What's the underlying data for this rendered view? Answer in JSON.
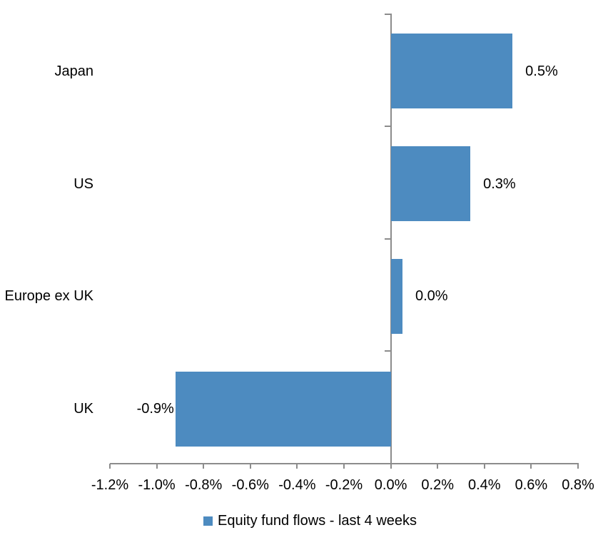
{
  "chart_data": {
    "type": "bar",
    "orientation": "horizontal",
    "title": "",
    "xlabel": "",
    "ylabel": "",
    "categories": [
      "Japan",
      "US",
      "Europe ex UK",
      "UK"
    ],
    "series": [
      {
        "name": "Equity fund flows - last 4 weeks",
        "values": [
          0.5,
          0.3,
          0.0,
          -0.9
        ]
      }
    ],
    "data_labels": [
      "0.5%",
      "0.3%",
      "0.0%",
      "-0.9%"
    ],
    "render_values_pct": [
      0.52,
      0.34,
      0.05,
      -0.92
    ],
    "xlim": [
      -1.2,
      0.8
    ],
    "x_tick_values": [
      -1.2,
      -1.0,
      -0.8,
      -0.6,
      -0.4,
      -0.2,
      0.0,
      0.2,
      0.4,
      0.6,
      0.8
    ],
    "x_tick_labels": [
      "-1.2%",
      "-1.0%",
      "-0.8%",
      "-0.6%",
      "-0.4%",
      "-0.2%",
      "0.0%",
      "0.2%",
      "0.4%",
      "0.6%",
      "0.8%"
    ],
    "grid": false,
    "legend": {
      "position": "bottom",
      "label": "Equity fund flows - last 4 weeks"
    },
    "colors": {
      "bar": "#4d8bc0",
      "axis": "#8c8c8c",
      "text": "#000000",
      "background": "#ffffff"
    }
  }
}
